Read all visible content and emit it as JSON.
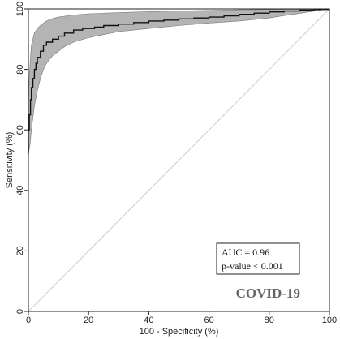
{
  "chart_data": {
    "type": "line",
    "xlabel": "100 - Specificity (%)",
    "ylabel": "Sensitivity (%)",
    "xlim": [
      0,
      100
    ],
    "ylim": [
      0,
      100
    ],
    "xticks": [
      0,
      20,
      40,
      60,
      80,
      100
    ],
    "yticks": [
      0,
      20,
      40,
      60,
      80,
      100
    ],
    "grid": false,
    "series": [
      {
        "role": "roc-curve",
        "x": [
          0,
          0,
          0.3,
          0.7,
          1,
          1.5,
          2,
          2.5,
          3,
          4,
          5,
          6,
          8,
          10,
          12,
          15,
          18,
          22,
          25,
          30,
          35,
          40,
          45,
          50,
          55,
          60,
          65,
          70,
          75,
          80,
          85,
          90,
          95,
          100
        ],
        "y": [
          52,
          60,
          65,
          70,
          74,
          77,
          80,
          82,
          84,
          86,
          88,
          89,
          90,
          91,
          92,
          93,
          93.5,
          94,
          94.5,
          95,
          95.5,
          96,
          96.3,
          96.7,
          97,
          97.3,
          97.7,
          98.2,
          98.6,
          99,
          99.3,
          99.6,
          99.8,
          100
        ]
      },
      {
        "role": "ci-upper",
        "x": [
          0,
          0.3,
          0.7,
          1,
          2,
          3,
          4,
          5,
          6,
          8,
          10,
          15,
          20,
          30,
          40,
          50,
          60,
          70,
          80,
          90,
          100
        ],
        "y": [
          68,
          78,
          84,
          88,
          92,
          93.5,
          94.5,
          95.3,
          96,
          96.8,
          97.3,
          98,
          98.4,
          98.8,
          99.1,
          99.3,
          99.5,
          99.7,
          99.8,
          99.9,
          100
        ]
      },
      {
        "role": "ci-lower",
        "x": [
          0,
          0.5,
          1,
          2,
          3,
          4,
          5,
          6,
          8,
          10,
          12,
          15,
          20,
          25,
          30,
          40,
          50,
          60,
          70,
          80,
          85,
          90,
          95,
          100
        ],
        "y": [
          52,
          55,
          60,
          68,
          73,
          77,
          80,
          82,
          84.5,
          86,
          87.5,
          89,
          90.5,
          91.5,
          92.5,
          93.5,
          94.5,
          95.3,
          96,
          97,
          97.8,
          98.5,
          99.3,
          100
        ]
      },
      {
        "role": "reference-diagonal",
        "x": [
          0,
          100
        ],
        "y": [
          0,
          100
        ]
      }
    ],
    "annotations": {
      "auc": "AUC = 0.96",
      "pvalue": "p-value < 0.001",
      "label": "COVID-19"
    },
    "colors": {
      "band": "#b4b4b4",
      "line": "#111111",
      "diagonal": "#cccccc"
    }
  }
}
